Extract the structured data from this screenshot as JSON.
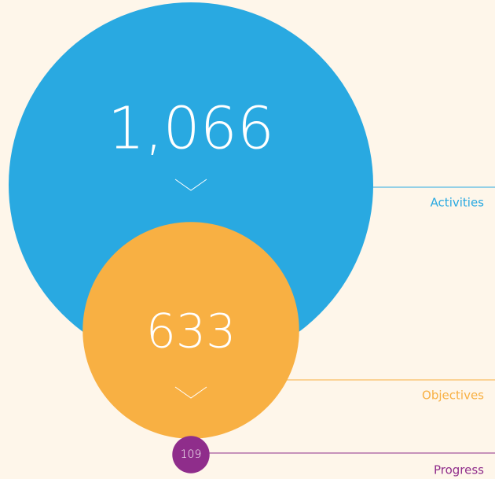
{
  "chart_data": {
    "type": "bubble",
    "categories": [
      "Activities",
      "Objectives",
      "Progress"
    ],
    "values": [
      1066,
      633,
      109
    ],
    "value_labels": [
      "1,066",
      "633",
      "109"
    ],
    "colors": [
      "#29a9e1",
      "#f8b043",
      "#8f2d8b"
    ]
  }
}
